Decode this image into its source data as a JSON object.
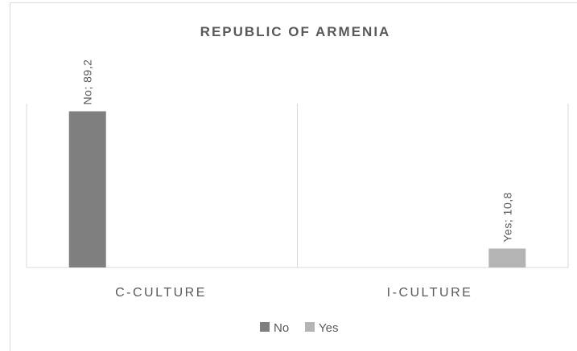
{
  "chart_data": {
    "type": "bar",
    "title": "REPUBLIC OF ARMENIA",
    "categories": [
      "C-CULTURE",
      "I-CULTURE"
    ],
    "series": [
      {
        "name": "No",
        "color": "#7f7f7f",
        "values": [
          89.2,
          null
        ],
        "labels": [
          "No; 89,2",
          ""
        ]
      },
      {
        "name": "Yes",
        "color": "#b4b4b4",
        "values": [
          null,
          10.8
        ],
        "labels": [
          "",
          "Yes; 10,8"
        ]
      }
    ],
    "ylim": [
      0,
      100
    ],
    "grid": false,
    "legend_position": "bottom"
  }
}
